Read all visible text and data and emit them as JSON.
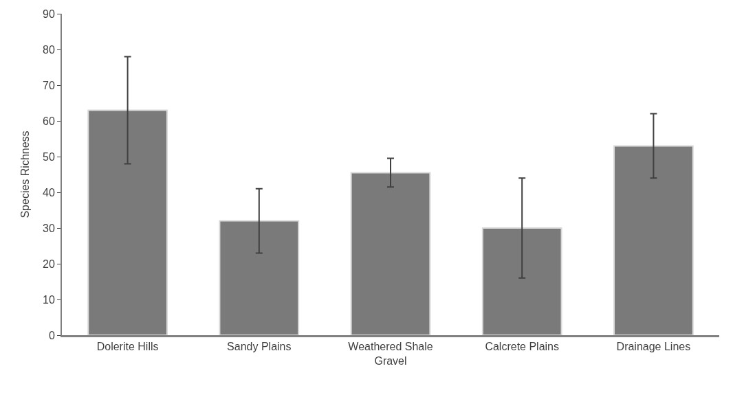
{
  "chart_data": {
    "type": "bar",
    "ylabel": "Species Richness",
    "categories": [
      "Dolerite Hills",
      "Sandy Plains",
      "Weathered Shale\nGravel",
      "Calcrete Plains",
      "Drainage Lines"
    ],
    "values": [
      63,
      32,
      45.5,
      30,
      53
    ],
    "errors": [
      15,
      9,
      4,
      14,
      9
    ],
    "color": "#7a7a7a",
    "ylim": [
      0,
      90
    ],
    "yticks": [
      0,
      10,
      20,
      30,
      40,
      50,
      60,
      70,
      80,
      90
    ]
  }
}
